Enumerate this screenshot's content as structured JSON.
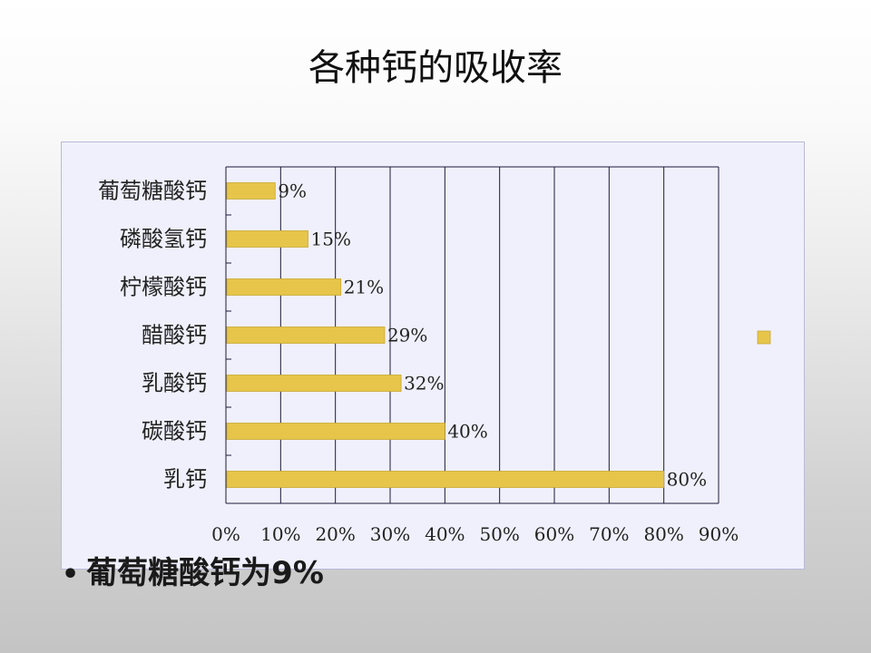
{
  "slide": {
    "title": "各种钙的吸收率",
    "bullet_text": "葡萄糖酸钙为9%"
  },
  "colors": {
    "bar": "#e6c54a",
    "bar_edge": "#c9a832",
    "grid": "#1a1a3a",
    "plot_bg": "#f0f0fc"
  },
  "chart_data": {
    "type": "bar",
    "orientation": "horizontal",
    "title": "",
    "xlabel": "",
    "ylabel": "",
    "categories": [
      "葡萄糖酸钙",
      "磷酸氢钙",
      "柠檬酸钙",
      "醋酸钙",
      "乳酸钙",
      "碳酸钙",
      "乳钙"
    ],
    "values": [
      0.09,
      0.15,
      0.21,
      0.29,
      0.32,
      0.4,
      0.8
    ],
    "data_labels": [
      "9%",
      "15%",
      "21%",
      "29%",
      "32%",
      "40%",
      "80%"
    ],
    "xlim": [
      0,
      0.9
    ],
    "x_ticks": [
      0,
      0.1,
      0.2,
      0.3,
      0.4,
      0.5,
      0.6,
      0.7,
      0.8,
      0.9
    ],
    "x_tick_labels": [
      "0%",
      "10%",
      "20%",
      "30%",
      "40%",
      "50%",
      "60%",
      "70%",
      "80%",
      "90%"
    ],
    "grid": true,
    "legend": "right"
  }
}
